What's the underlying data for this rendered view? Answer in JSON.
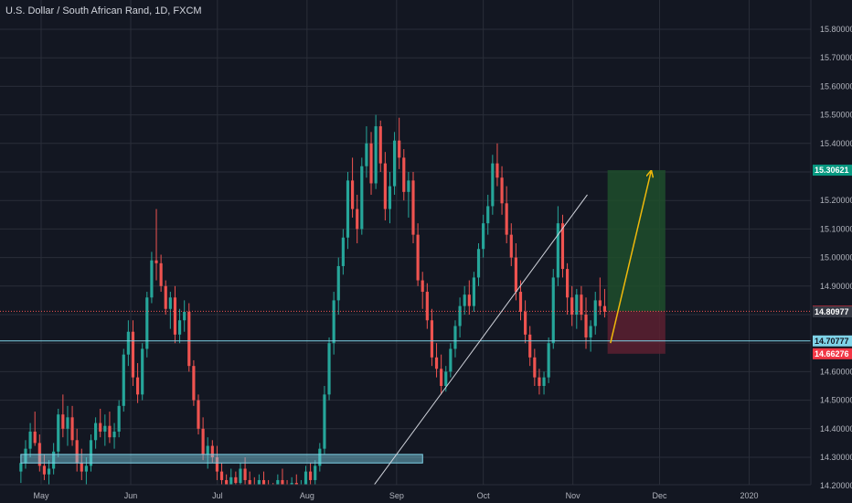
{
  "chart_data": {
    "type": "candlestick",
    "title": "U.S. Dollar / South African Rand, 1D, FXCM",
    "ylim": [
      14.2,
      15.85
    ],
    "y_ticks": [
      "15.80000",
      "15.70000",
      "15.60000",
      "15.50000",
      "15.40000",
      "15.30000",
      "15.20000",
      "15.10000",
      "15.00000",
      "14.90000",
      "14.80000",
      "14.70000",
      "14.60000",
      "14.50000",
      "14.40000",
      "14.30000",
      "14.20000"
    ],
    "y_tick_values": [
      15.8,
      15.7,
      15.6,
      15.5,
      15.4,
      15.3,
      15.2,
      15.1,
      15.0,
      14.9,
      14.8,
      14.7,
      14.6,
      14.5,
      14.4,
      14.3,
      14.2
    ],
    "x_ticks": [
      "May",
      "Jun",
      "Jul",
      "Aug",
      "Sep",
      "Oct",
      "Nov",
      "Dec",
      "2020"
    ],
    "x_tick_dates": [
      "2019-05-01",
      "2019-06-01",
      "2019-07-01",
      "2019-08-01",
      "2019-09-01",
      "2019-10-01",
      "2019-11-01",
      "2019-12-01",
      "2020-01-01"
    ],
    "first_candle_date": "2019-04-24",
    "last_candle_date": "2019-11-12",
    "grid": true,
    "candles_ohlc": [
      [
        14.25,
        14.31,
        14.21,
        14.28
      ],
      [
        14.28,
        14.36,
        14.26,
        14.33
      ],
      [
        14.33,
        14.42,
        14.3,
        14.39
      ],
      [
        14.39,
        14.46,
        14.34,
        14.35
      ],
      [
        14.35,
        14.38,
        14.25,
        14.27
      ],
      [
        14.27,
        14.31,
        14.22,
        14.24
      ],
      [
        14.24,
        14.29,
        14.2,
        14.26
      ],
      [
        14.26,
        14.35,
        14.24,
        14.32
      ],
      [
        14.32,
        14.47,
        14.3,
        14.45
      ],
      [
        14.45,
        14.52,
        14.37,
        14.4
      ],
      [
        14.4,
        14.48,
        14.34,
        14.44
      ],
      [
        14.44,
        14.48,
        14.34,
        14.36
      ],
      [
        14.36,
        14.4,
        14.25,
        14.28
      ],
      [
        14.28,
        14.33,
        14.22,
        14.25
      ],
      [
        14.25,
        14.3,
        14.2,
        14.27
      ],
      [
        14.27,
        14.38,
        14.25,
        14.36
      ],
      [
        14.36,
        14.44,
        14.33,
        14.42
      ],
      [
        14.42,
        14.47,
        14.37,
        14.39
      ],
      [
        14.39,
        14.45,
        14.34,
        14.41
      ],
      [
        14.41,
        14.46,
        14.35,
        14.37
      ],
      [
        14.37,
        14.42,
        14.33,
        14.39
      ],
      [
        14.39,
        14.5,
        14.37,
        14.48
      ],
      [
        14.48,
        14.68,
        14.46,
        14.66
      ],
      [
        14.66,
        14.78,
        14.62,
        14.74
      ],
      [
        14.74,
        14.78,
        14.55,
        14.58
      ],
      [
        14.58,
        14.63,
        14.49,
        14.52
      ],
      [
        14.52,
        14.7,
        14.5,
        14.68
      ],
      [
        14.68,
        14.88,
        14.65,
        14.86
      ],
      [
        14.86,
        15.02,
        14.84,
        14.99
      ],
      [
        14.99,
        15.17,
        14.92,
        14.98
      ],
      [
        14.98,
        15.01,
        14.88,
        14.9
      ],
      [
        14.9,
        14.92,
        14.8,
        14.82
      ],
      [
        14.82,
        14.88,
        14.75,
        14.86
      ],
      [
        14.86,
        14.9,
        14.7,
        14.73
      ],
      [
        14.73,
        14.82,
        14.7,
        14.78
      ],
      [
        14.78,
        14.85,
        14.74,
        14.81
      ],
      [
        14.81,
        14.84,
        14.6,
        14.62
      ],
      [
        14.62,
        14.64,
        14.48,
        14.5
      ],
      [
        14.5,
        14.52,
        14.38,
        14.4
      ],
      [
        14.4,
        14.44,
        14.29,
        14.31
      ],
      [
        14.31,
        14.37,
        14.26,
        14.34
      ],
      [
        14.34,
        14.36,
        14.28,
        14.3
      ],
      [
        14.3,
        14.34,
        14.22,
        14.25
      ],
      [
        14.25,
        14.28,
        14.19,
        14.22
      ],
      [
        14.22,
        14.24,
        14.16,
        14.2
      ],
      [
        14.2,
        14.26,
        14.18,
        14.23
      ],
      [
        14.23,
        14.25,
        14.18,
        14.21
      ],
      [
        14.21,
        14.28,
        14.19,
        14.26
      ],
      [
        14.26,
        14.3,
        14.2,
        14.22
      ],
      [
        14.22,
        14.25,
        14.17,
        14.2
      ],
      [
        14.2,
        14.23,
        14.16,
        14.19
      ],
      [
        14.19,
        14.24,
        14.17,
        14.22
      ],
      [
        14.22,
        14.25,
        14.17,
        14.19
      ],
      [
        14.19,
        14.22,
        14.15,
        14.18
      ],
      [
        14.18,
        14.21,
        14.15,
        14.17
      ],
      [
        14.17,
        14.24,
        14.16,
        14.22
      ],
      [
        14.22,
        14.26,
        14.18,
        14.2
      ],
      [
        14.2,
        14.22,
        14.15,
        14.18
      ],
      [
        14.18,
        14.23,
        14.16,
        14.21
      ],
      [
        14.21,
        14.24,
        14.17,
        14.19
      ],
      [
        14.19,
        14.22,
        14.16,
        14.2
      ],
      [
        14.2,
        14.27,
        14.18,
        14.25
      ],
      [
        14.25,
        14.28,
        14.19,
        14.22
      ],
      [
        14.22,
        14.29,
        14.2,
        14.27
      ],
      [
        14.27,
        14.35,
        14.25,
        14.33
      ],
      [
        14.33,
        14.55,
        14.31,
        14.52
      ],
      [
        14.52,
        14.72,
        14.5,
        14.7
      ],
      [
        14.7,
        14.88,
        14.66,
        14.85
      ],
      [
        14.85,
        15.0,
        14.8,
        14.97
      ],
      [
        14.97,
        15.1,
        14.94,
        15.07
      ],
      [
        15.07,
        15.3,
        15.03,
        15.27
      ],
      [
        15.27,
        15.35,
        15.14,
        15.17
      ],
      [
        15.17,
        15.22,
        15.05,
        15.1
      ],
      [
        15.1,
        15.35,
        15.08,
        15.32
      ],
      [
        15.32,
        15.46,
        15.28,
        15.4
      ],
      [
        15.4,
        15.44,
        15.22,
        15.26
      ],
      [
        15.26,
        15.5,
        15.24,
        15.46
      ],
      [
        15.46,
        15.48,
        15.3,
        15.33
      ],
      [
        15.33,
        15.37,
        15.13,
        15.17
      ],
      [
        15.17,
        15.3,
        15.12,
        15.25
      ],
      [
        15.25,
        15.44,
        15.22,
        15.41
      ],
      [
        15.41,
        15.49,
        15.31,
        15.35
      ],
      [
        15.35,
        15.38,
        15.2,
        15.23
      ],
      [
        15.23,
        15.3,
        15.14,
        15.27
      ],
      [
        15.27,
        15.3,
        15.05,
        15.08
      ],
      [
        15.08,
        15.12,
        14.9,
        14.92
      ],
      [
        14.92,
        14.95,
        14.82,
        14.88
      ],
      [
        14.88,
        14.91,
        14.75,
        14.78
      ],
      [
        14.78,
        14.82,
        14.62,
        14.65
      ],
      [
        14.65,
        14.7,
        14.58,
        14.61
      ],
      [
        14.61,
        14.66,
        14.52,
        14.55
      ],
      [
        14.55,
        14.62,
        14.53,
        14.6
      ],
      [
        14.6,
        14.7,
        14.58,
        14.68
      ],
      [
        14.68,
        14.78,
        14.65,
        14.76
      ],
      [
        14.76,
        14.86,
        14.72,
        14.83
      ],
      [
        14.83,
        14.9,
        14.8,
        14.87
      ],
      [
        14.87,
        14.92,
        14.8,
        14.83
      ],
      [
        14.83,
        14.95,
        14.81,
        14.93
      ],
      [
        14.93,
        15.05,
        14.9,
        15.03
      ],
      [
        15.03,
        15.15,
        15.0,
        15.12
      ],
      [
        15.12,
        15.22,
        15.08,
        15.18
      ],
      [
        15.18,
        15.36,
        15.15,
        15.33
      ],
      [
        15.33,
        15.4,
        15.25,
        15.28
      ],
      [
        15.28,
        15.32,
        15.15,
        15.19
      ],
      [
        15.19,
        15.25,
        15.05,
        15.08
      ],
      [
        15.08,
        15.12,
        14.97,
        15.0
      ],
      [
        15.0,
        15.05,
        14.85,
        14.88
      ],
      [
        14.88,
        14.92,
        14.78,
        14.81
      ],
      [
        14.81,
        14.85,
        14.7,
        14.73
      ],
      [
        14.73,
        14.76,
        14.62,
        14.65
      ],
      [
        14.65,
        14.68,
        14.55,
        14.58
      ],
      [
        14.58,
        14.61,
        14.52,
        14.55
      ],
      [
        14.55,
        14.6,
        14.52,
        14.58
      ],
      [
        14.58,
        14.72,
        14.56,
        14.7
      ],
      [
        14.7,
        14.96,
        14.68,
        14.93
      ],
      [
        14.93,
        15.18,
        14.9,
        15.12
      ],
      [
        15.12,
        15.15,
        14.93,
        14.96
      ],
      [
        14.96,
        14.98,
        14.8,
        14.86
      ],
      [
        14.86,
        14.9,
        14.76,
        14.8
      ],
      [
        14.8,
        14.89,
        14.75,
        14.87
      ],
      [
        14.87,
        14.9,
        14.78,
        14.8
      ],
      [
        14.8,
        14.86,
        14.68,
        14.72
      ],
      [
        14.72,
        14.78,
        14.67,
        14.76
      ],
      [
        14.76,
        14.88,
        14.73,
        14.85
      ],
      [
        14.85,
        14.93,
        14.8,
        14.83
      ],
      [
        14.83,
        14.89,
        14.79,
        14.81
      ]
    ]
  },
  "annotations": {
    "right_labels": [
      {
        "value": 15.30621,
        "text": "15.30621",
        "bg": "#089981",
        "fg": "#ffffff"
      },
      {
        "value": 14.8116,
        "text": "14.81160",
        "bg": "#f23645",
        "fg": "#ffffff"
      },
      {
        "value": 14.80977,
        "text": "14.80977",
        "bg": "#363a45",
        "fg": "#ffffff"
      },
      {
        "value": 14.70777,
        "text": "14.70777",
        "bg": "#7fd3e8",
        "fg": "#131722"
      },
      {
        "value": 14.66276,
        "text": "14.66276",
        "bg": "#f23645",
        "fg": "#ffffff"
      }
    ],
    "support_line": 14.70777,
    "price_line": 14.8116,
    "support_zone": {
      "start_date": "2019-04-24",
      "end_date": "2019-09-10",
      "low": 14.28,
      "high": 14.31
    },
    "trendline": {
      "start_date": "2019-08-24",
      "start_value": 14.2,
      "end_date": "2019-11-06",
      "end_value": 15.22
    },
    "position": {
      "start_date": "2019-11-13",
      "end_date": "2019-12-03",
      "entry": 14.8116,
      "target": 15.30621,
      "stop": 14.66276
    },
    "projection_arrow": {
      "start_date": "2019-11-14",
      "start_value": 14.7,
      "end_date": "2019-11-28",
      "end_value": 15.3
    }
  },
  "colors": {
    "background": "#131722",
    "grid": "#2a2e39",
    "up": "#26a69a",
    "down": "#ef5350",
    "support_line": "#7fd3e8",
    "trendline": "#d1d4dc",
    "target_zone": "#1e4d2b",
    "stop_zone": "#5c2030",
    "projection_arrow": "#f0b90b"
  }
}
